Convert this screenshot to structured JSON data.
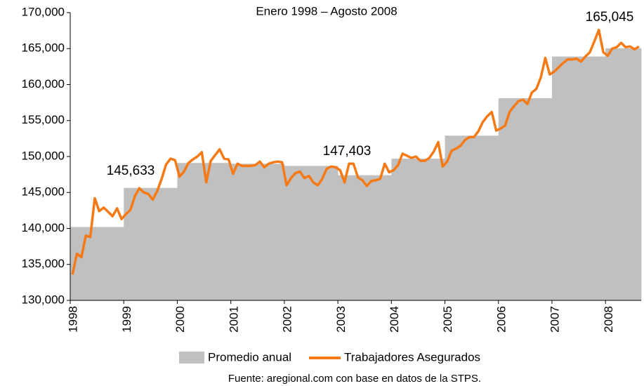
{
  "chart_data": {
    "type": "bar",
    "title": "Enero 1998 – Agosto 2008",
    "source": "Fuente: aregional.com con base en datos de la STPS.",
    "annotations": [
      "145,633",
      "147,403",
      "165,045"
    ],
    "categories": [
      "1998",
      null,
      null,
      null,
      null,
      null,
      null,
      null,
      null,
      null,
      null,
      null,
      "1999",
      null,
      null,
      null,
      null,
      null,
      null,
      null,
      null,
      null,
      null,
      null,
      "2000",
      null,
      null,
      null,
      null,
      null,
      null,
      null,
      null,
      null,
      null,
      null,
      "2001",
      null,
      null,
      null,
      null,
      null,
      null,
      null,
      null,
      null,
      null,
      null,
      "2002",
      null,
      null,
      null,
      null,
      null,
      null,
      null,
      null,
      null,
      null,
      null,
      "2003",
      null,
      null,
      null,
      null,
      null,
      null,
      null,
      null,
      null,
      null,
      null,
      "2004",
      null,
      null,
      null,
      null,
      null,
      null,
      null,
      null,
      null,
      null,
      null,
      "2005",
      null,
      null,
      null,
      null,
      null,
      null,
      null,
      null,
      null,
      null,
      null,
      "2006",
      null,
      null,
      null,
      null,
      null,
      null,
      null,
      null,
      null,
      null,
      null,
      "2007",
      null,
      null,
      null,
      null,
      null,
      null,
      null,
      null,
      null,
      null,
      null,
      "2008",
      null,
      null,
      null,
      null,
      null,
      null,
      null
    ],
    "series": [
      {
        "name": "Promedio anual",
        "color": "#c0c0c0",
        "type": "bar",
        "values": [
          140200,
          140200,
          140200,
          140200,
          140200,
          140200,
          140200,
          140200,
          140200,
          140200,
          140200,
          140200,
          145633,
          145633,
          145633,
          145633,
          145633,
          145633,
          145633,
          145633,
          145633,
          145633,
          145633,
          145633,
          149100,
          149100,
          149100,
          149100,
          149100,
          149100,
          149100,
          149100,
          149100,
          149100,
          149100,
          149100,
          149000,
          149000,
          149000,
          149000,
          149000,
          149000,
          149000,
          149000,
          149000,
          149000,
          149000,
          149000,
          148700,
          148700,
          148700,
          148700,
          148700,
          148700,
          148700,
          148700,
          148700,
          148700,
          148700,
          148700,
          147403,
          147403,
          147403,
          147403,
          147403,
          147403,
          147403,
          147403,
          147403,
          147403,
          147403,
          147403,
          149700,
          149700,
          149700,
          149700,
          149700,
          149700,
          149700,
          149700,
          149700,
          149700,
          149700,
          149700,
          152900,
          152900,
          152900,
          152900,
          152900,
          152900,
          152900,
          152900,
          152900,
          152900,
          152900,
          152900,
          158100,
          158100,
          158100,
          158100,
          158100,
          158100,
          158100,
          158100,
          158100,
          158100,
          158100,
          158100,
          163900,
          163900,
          163900,
          163900,
          163900,
          163900,
          163900,
          163900,
          163900,
          163900,
          163900,
          163900,
          165045,
          165045,
          165045,
          165045,
          165045,
          165045,
          165045,
          165045
        ]
      },
      {
        "name": "Trabajadores Asegurados",
        "color": "#f57a16",
        "type": "line",
        "values": [
          133600,
          136500,
          136000,
          139000,
          138800,
          144200,
          142400,
          142900,
          142300,
          141700,
          142800,
          141300,
          142000,
          142600,
          144500,
          145600,
          145000,
          144800,
          144000,
          145200,
          146900,
          148900,
          149700,
          149500,
          147200,
          147900,
          149100,
          149600,
          150000,
          150600,
          146400,
          149400,
          150200,
          151000,
          149700,
          149600,
          147600,
          149000,
          148700,
          148700,
          148700,
          148800,
          149300,
          148500,
          149000,
          149200,
          149300,
          149200,
          146000,
          147000,
          147700,
          147900,
          147000,
          147300,
          146400,
          146000,
          146900,
          148300,
          148600,
          148500,
          148100,
          146400,
          149000,
          149000,
          147100,
          146700,
          145900,
          146600,
          146700,
          146900,
          149000,
          147800,
          148100,
          148800,
          150400,
          150100,
          149800,
          150000,
          149400,
          149400,
          149800,
          150700,
          152000,
          148600,
          149300,
          150800,
          151100,
          151500,
          152300,
          152700,
          152700,
          153500,
          154800,
          155600,
          156200,
          153600,
          153900,
          154300,
          156200,
          157000,
          157700,
          157900,
          157300,
          158900,
          159400,
          161000,
          163700,
          161400,
          161800,
          162400,
          163000,
          163500,
          163500,
          163600,
          163200,
          163900,
          164500,
          166000,
          167600,
          164500,
          164000,
          165000,
          165200,
          165800,
          165200,
          165300,
          164900,
          165300
        ]
      }
    ],
    "ylim": [
      130000,
      170000
    ],
    "yticks": [
      {
        "value": 130000,
        "label": "130,000"
      },
      {
        "value": 135000,
        "label": "135,000"
      },
      {
        "value": 140000,
        "label": "140,000"
      },
      {
        "value": 145000,
        "label": "145,000"
      },
      {
        "value": 150000,
        "label": "150,000"
      },
      {
        "value": 155000,
        "label": "155,000"
      },
      {
        "value": 160000,
        "label": "160,000"
      },
      {
        "value": 165000,
        "label": "165,000"
      },
      {
        "value": 170000,
        "label": "170,000"
      }
    ],
    "grid": false
  }
}
